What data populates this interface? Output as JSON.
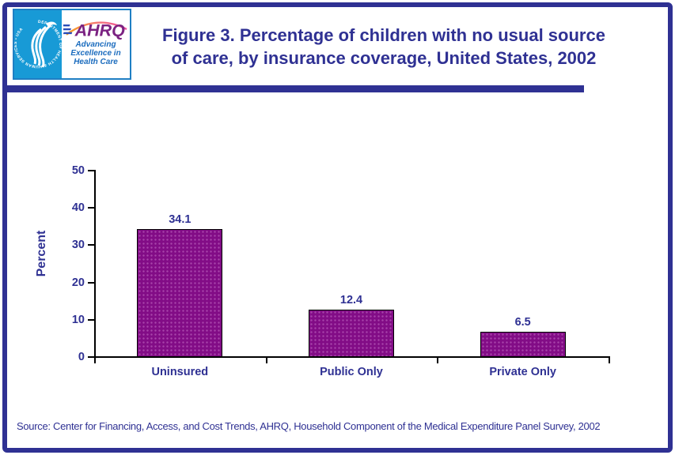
{
  "page": {
    "title_lines": [
      "Figure 3. Percentage of children with no usual source",
      "of care, by insurance coverage, United States, 2002"
    ],
    "source": "Source: Center for Financing, Access, and Cost Trends, AHRQ, Household Component of the Medical Expenditure Panel Survey, 2002"
  },
  "logo": {
    "ahrq_wordmark": "AHRQ",
    "tagline_lines": [
      "Advancing",
      "Excellence in",
      "Health Care"
    ],
    "seal_text": "DEPARTMENT OF HEALTH & HUMAN SERVICES • USA"
  },
  "colors": {
    "navy": "#2f3193",
    "bar_fill": "#820c86",
    "bar_dot": "#a844aa",
    "bar_border": "#000000",
    "logo_blue": "#189ad6",
    "ahrq_purple": "#7b2382",
    "tagline_blue": "#1b6cbe"
  },
  "chart_data": {
    "type": "bar",
    "categories": [
      "Uninsured",
      "Public Only",
      "Private Only"
    ],
    "values": [
      34.1,
      12.4,
      6.5
    ],
    "value_labels": [
      "34.1",
      "12.4",
      "6.5"
    ],
    "title": "Figure 3. Percentage of children with no usual source of care, by insurance coverage, United States, 2002",
    "xlabel": "",
    "ylabel": "Percent",
    "ylim": [
      0,
      50
    ],
    "yticks": [
      0,
      10,
      20,
      30,
      40,
      50
    ],
    "grid": false,
    "legend": false
  }
}
